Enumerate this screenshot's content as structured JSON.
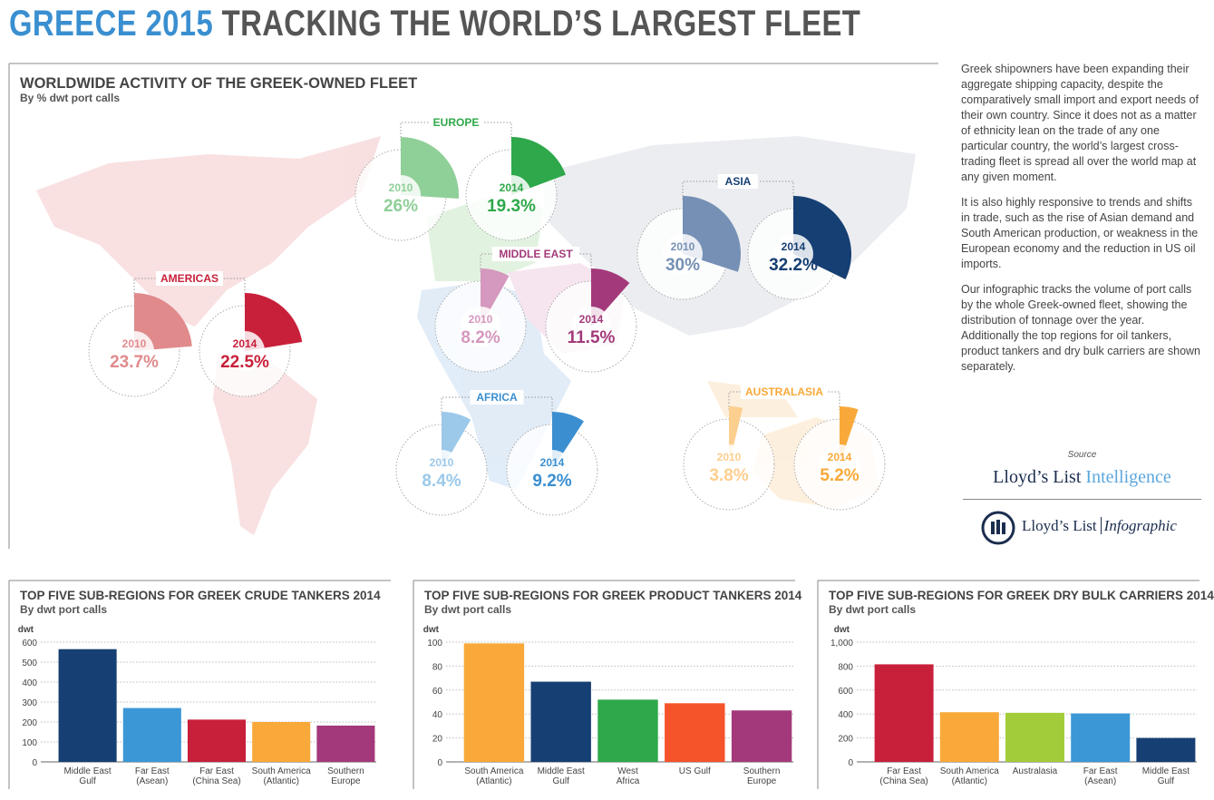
{
  "header": {
    "title_lead": "GREECE 2015",
    "title": "TRACKING THE WORLD’S LARGEST FLEET"
  },
  "map": {
    "title": "WORLDWIDE ACTIVITY OF THE GREEK-OWNED FLEET",
    "subtitle": "By % dwt port calls",
    "regions": [
      {
        "name": "EUROPE",
        "years": [
          "2010",
          "2014"
        ],
        "values": [
          26,
          19.3
        ],
        "value_labels": [
          "26%",
          "19.3%"
        ],
        "colors": [
          "#8fcf98",
          "#2ea84a"
        ]
      },
      {
        "name": "ASIA",
        "years": [
          "2010",
          "2014"
        ],
        "values": [
          30,
          32.2
        ],
        "value_labels": [
          "30%",
          "32.2%"
        ],
        "colors": [
          "#7590b4",
          "#163f73"
        ]
      },
      {
        "name": "MIDDLE EAST",
        "years": [
          "2010",
          "2014"
        ],
        "values": [
          8.2,
          11.5
        ],
        "value_labels": [
          "8.2%",
          "11.5%"
        ],
        "colors": [
          "#d598be",
          "#a3397a"
        ]
      },
      {
        "name": "AMERICAS",
        "years": [
          "2010",
          "2014"
        ],
        "values": [
          23.7,
          22.5
        ],
        "value_labels": [
          "23.7%",
          "22.5%"
        ],
        "colors": [
          "#e08a8c",
          "#c8203a"
        ]
      },
      {
        "name": "AFRICA",
        "years": [
          "2010",
          "2014"
        ],
        "values": [
          8.4,
          9.2
        ],
        "value_labels": [
          "8.4%",
          "9.2%"
        ],
        "colors": [
          "#9cc9ea",
          "#3b8fd0"
        ]
      },
      {
        "name": "AUSTRALASIA",
        "years": [
          "2010",
          "2014"
        ],
        "values": [
          3.8,
          5.2
        ],
        "value_labels": [
          "3.8%",
          "5.2%"
        ],
        "colors": [
          "#fccf8f",
          "#f9a93a"
        ]
      }
    ]
  },
  "sidebar": {
    "paragraphs": [
      "Greek shipowners have been expanding their aggregate shipping capacity, despite the comparatively small import and export needs of their own country. Since it does not as a matter of ethnicity lean on the trade of any one particular country, the world’s largest cross-trading fleet is spread all over the world map at any given moment.",
      "It is also highly responsive to trends and shifts in trade, such as the rise of Asian demand and South American production, or weakness in the European economy and the reduction in US oil imports.",
      "Our infographic tracks the volume of port calls by the whole Greek-owned fleet, showing the distribution of tonnage over the year. Additionally the top regions for oil tankers, product tankers and dry bulk carriers are shown separately."
    ],
    "source_label": "Source",
    "source_lead": "Lloyd’s List",
    "source_tail": "Intelligence",
    "logo_lead": "Lloyd’s List",
    "logo_tail": "Infographic"
  },
  "chart_data": [
    {
      "type": "bar",
      "title": "TOP FIVE SUB-REGIONS FOR GREEK CRUDE TANKERS 2014",
      "subtitle": "By dwt port calls",
      "y_label": "dwt",
      "categories": [
        "Middle East\nGulf",
        "Far East\n(Asean)",
        "Far East\n(China Sea)",
        "South America\n(Atlantic)",
        "Southern\nEurope"
      ],
      "values": [
        565,
        270,
        212,
        200,
        182
      ],
      "colors": [
        "#163f73",
        "#3b97d6",
        "#c8203a",
        "#f9a93a",
        "#a3397a"
      ],
      "ylim": [
        0,
        600
      ],
      "yticks": [
        0,
        100,
        200,
        300,
        400,
        500,
        600
      ],
      "grid": true
    },
    {
      "type": "bar",
      "title": "TOP FIVE SUB-REGIONS FOR GREEK PRODUCT TANKERS 2014",
      "subtitle": "By dwt port calls",
      "y_label": "dwt",
      "categories": [
        "South America\n(Atlantic)",
        "Middle East\nGulf",
        "West\nAfrica",
        "US Gulf",
        "Southern\nEurope"
      ],
      "values": [
        99,
        67,
        52,
        49,
        43
      ],
      "colors": [
        "#f9a93a",
        "#163f73",
        "#2ea84a",
        "#f5532a",
        "#a3397a"
      ],
      "ylim": [
        0,
        100
      ],
      "yticks": [
        0,
        20,
        40,
        60,
        80,
        100
      ],
      "grid": true
    },
    {
      "type": "bar",
      "title": "TOP FIVE SUB-REGIONS FOR GREEK DRY BULK CARRIERS 2014",
      "subtitle": "By dwt port calls",
      "y_label": "dwt",
      "categories": [
        "Far East\n(China Sea)",
        "South America\n(Atlantic)",
        "Australasia",
        "Far East\n(Asean)",
        "Middle East\nGulf"
      ],
      "values": [
        815,
        415,
        410,
        405,
        200
      ],
      "colors": [
        "#c8203a",
        "#f9a93a",
        "#a2cc3a",
        "#3b97d6",
        "#163f73"
      ],
      "ylim": [
        0,
        1000
      ],
      "yticks": [
        0,
        200,
        400,
        600,
        800,
        {
          "value": 1000,
          "label": "1,000"
        }
      ],
      "grid": true
    }
  ]
}
